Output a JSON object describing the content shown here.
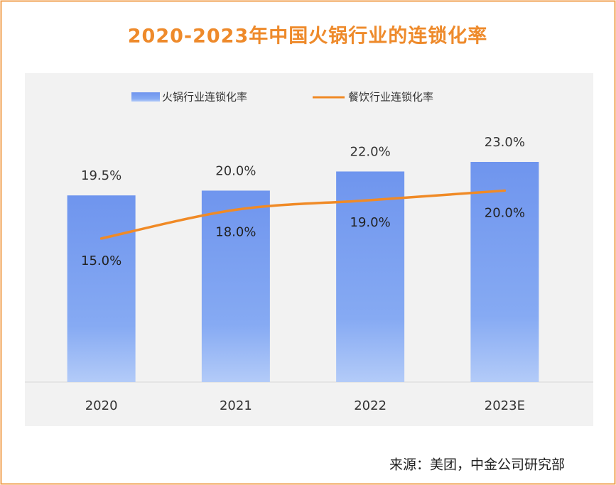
{
  "chart_data": {
    "type": "bar",
    "title": "2020-2023年中国火锅行业的连锁化率",
    "categories": [
      "2020",
      "2021",
      "2022",
      "2023E"
    ],
    "series": [
      {
        "name": "火锅行业连锁化率",
        "type": "bar",
        "color": "#7a9ff0",
        "values": [
          19.5,
          20.0,
          22.0,
          23.0
        ],
        "value_labels": [
          "19.5%",
          "20.0%",
          "22.0%",
          "23.0%"
        ]
      },
      {
        "name": "餐饮行业连锁化率",
        "type": "line",
        "color": "#f08a26",
        "values": [
          15.0,
          18.0,
          19.0,
          20.0
        ],
        "value_labels": [
          "15.0%",
          "18.0%",
          "19.0%",
          "20.0%"
        ]
      }
    ],
    "source": "来源：美团，中金公司研究部"
  }
}
